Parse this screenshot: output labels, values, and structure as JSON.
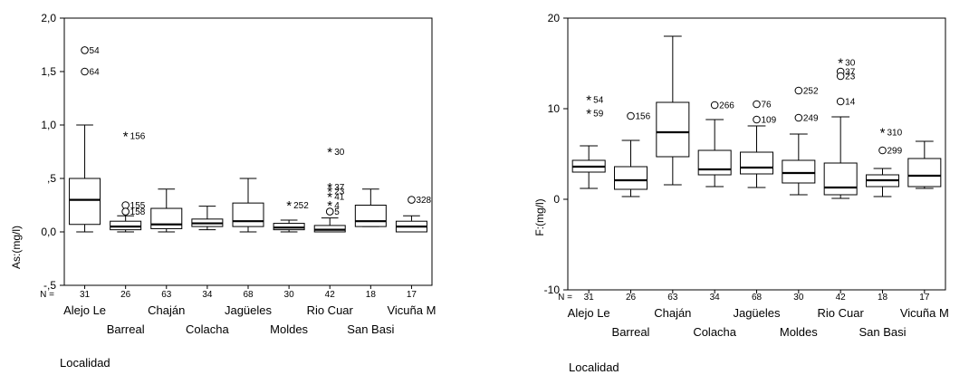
{
  "chart_data": [
    {
      "type": "boxplot",
      "xlabel": "Localidad",
      "ylabel": "As:(mg/l)",
      "ylim": [
        -0.5,
        2.0
      ],
      "yticks": [
        -0.5,
        0.0,
        0.5,
        1.0,
        1.5,
        2.0
      ],
      "yticklabels": [
        "-,5",
        "0,0",
        ",5",
        "1,0",
        "1,5",
        "2,0"
      ],
      "n_label": "N =",
      "grid": false,
      "categories": [
        "Alejo Le",
        "Barreal",
        "Chaján",
        "Colacha",
        "Jagüeles",
        "Moldes",
        "Rio Cuar",
        "San Basi",
        "Vicuña M"
      ],
      "n": [
        "31",
        "26",
        "63",
        "34",
        "68",
        "30",
        "42",
        "18",
        "17"
      ],
      "boxes": [
        {
          "whisker_low": 0.0,
          "q1": 0.07,
          "median": 0.3,
          "q3": 0.5,
          "whisker_high": 1.0
        },
        {
          "whisker_low": 0.0,
          "q1": 0.02,
          "median": 0.05,
          "q3": 0.1,
          "whisker_high": 0.15
        },
        {
          "whisker_low": 0.0,
          "q1": 0.03,
          "median": 0.07,
          "q3": 0.22,
          "whisker_high": 0.4
        },
        {
          "whisker_low": 0.02,
          "q1": 0.05,
          "median": 0.08,
          "q3": 0.12,
          "whisker_high": 0.24
        },
        {
          "whisker_low": 0.0,
          "q1": 0.05,
          "median": 0.1,
          "q3": 0.27,
          "whisker_high": 0.5
        },
        {
          "whisker_low": 0.0,
          "q1": 0.02,
          "median": 0.04,
          "q3": 0.08,
          "whisker_high": 0.11
        },
        {
          "whisker_low": 0.0,
          "q1": 0.0,
          "median": 0.02,
          "q3": 0.06,
          "whisker_high": 0.13
        },
        {
          "whisker_low": 0.05,
          "q1": 0.05,
          "median": 0.1,
          "q3": 0.25,
          "whisker_high": 0.4
        },
        {
          "whisker_low": 0.0,
          "q1": 0.0,
          "median": 0.05,
          "q3": 0.1,
          "whisker_high": 0.15
        }
      ],
      "outliers": [
        {
          "cat": 0,
          "y": 1.7,
          "marker": "circle",
          "label": "54"
        },
        {
          "cat": 0,
          "y": 1.5,
          "marker": "circle",
          "label": "64"
        },
        {
          "cat": 1,
          "y": 0.9,
          "marker": "asterisk",
          "label": "156"
        },
        {
          "cat": 1,
          "y": 0.25,
          "marker": "circle",
          "label": "155"
        },
        {
          "cat": 1,
          "y": 0.19,
          "marker": "circle",
          "label": "158"
        },
        {
          "cat": 5,
          "y": 0.25,
          "marker": "asterisk",
          "label": "252"
        },
        {
          "cat": 6,
          "y": 0.75,
          "marker": "asterisk",
          "label": "30"
        },
        {
          "cat": 6,
          "y": 0.42,
          "marker": "asterisk",
          "label": "37"
        },
        {
          "cat": 6,
          "y": 0.38,
          "marker": "asterisk",
          "label": "23"
        },
        {
          "cat": 6,
          "y": 0.33,
          "marker": "asterisk",
          "label": "41"
        },
        {
          "cat": 6,
          "y": 0.25,
          "marker": "asterisk",
          "label": "4"
        },
        {
          "cat": 6,
          "y": 0.19,
          "marker": "circle",
          "label": "5"
        },
        {
          "cat": 8,
          "y": 0.3,
          "marker": "circle",
          "label": "328"
        }
      ]
    },
    {
      "type": "boxplot",
      "xlabel": "Localidad",
      "ylabel": "F:(mg/l)",
      "ylim": [
        -10,
        20
      ],
      "yticks": [
        -10,
        0,
        10,
        20
      ],
      "yticklabels": [
        "-10",
        "0",
        "10",
        "20"
      ],
      "n_label": "N =",
      "grid": false,
      "categories": [
        "Alejo Le",
        "Barreal",
        "Chaján",
        "Colacha",
        "Jagüeles",
        "Moldes",
        "Rio Cuar",
        "San Basi",
        "Vicuña M"
      ],
      "n": [
        "31",
        "26",
        "63",
        "34",
        "68",
        "30",
        "42",
        "18",
        "17"
      ],
      "boxes": [
        {
          "whisker_low": 1.2,
          "q1": 3.0,
          "median": 3.6,
          "q3": 4.3,
          "whisker_high": 5.9
        },
        {
          "whisker_low": 0.3,
          "q1": 1.1,
          "median": 2.1,
          "q3": 3.6,
          "whisker_high": 6.5
        },
        {
          "whisker_low": 1.6,
          "q1": 4.7,
          "median": 7.4,
          "q3": 10.7,
          "whisker_high": 18.0
        },
        {
          "whisker_low": 1.4,
          "q1": 2.7,
          "median": 3.3,
          "q3": 5.4,
          "whisker_high": 8.8
        },
        {
          "whisker_low": 1.3,
          "q1": 2.8,
          "median": 3.5,
          "q3": 5.2,
          "whisker_high": 8.1
        },
        {
          "whisker_low": 0.5,
          "q1": 1.8,
          "median": 2.9,
          "q3": 4.3,
          "whisker_high": 7.2
        },
        {
          "whisker_low": 0.1,
          "q1": 0.5,
          "median": 1.3,
          "q3": 4.0,
          "whisker_high": 9.1
        },
        {
          "whisker_low": 0.3,
          "q1": 1.4,
          "median": 2.1,
          "q3": 2.7,
          "whisker_high": 3.4
        },
        {
          "whisker_low": 1.2,
          "q1": 1.4,
          "median": 2.6,
          "q3": 4.5,
          "whisker_high": 6.4
        }
      ],
      "outliers": [
        {
          "cat": 0,
          "y": 11.0,
          "marker": "asterisk",
          "label": "54"
        },
        {
          "cat": 0,
          "y": 9.5,
          "marker": "asterisk",
          "label": "59"
        },
        {
          "cat": 1,
          "y": 9.2,
          "marker": "circle",
          "label": "156"
        },
        {
          "cat": 3,
          "y": 10.4,
          "marker": "circle",
          "label": "266"
        },
        {
          "cat": 4,
          "y": 10.5,
          "marker": "circle",
          "label": "76"
        },
        {
          "cat": 4,
          "y": 8.8,
          "marker": "circle",
          "label": "109"
        },
        {
          "cat": 5,
          "y": 12.0,
          "marker": "circle",
          "label": "252"
        },
        {
          "cat": 5,
          "y": 9.0,
          "marker": "circle",
          "label": "249"
        },
        {
          "cat": 6,
          "y": 15.1,
          "marker": "asterisk",
          "label": "30"
        },
        {
          "cat": 6,
          "y": 14.1,
          "marker": "circle",
          "label": "37"
        },
        {
          "cat": 6,
          "y": 13.6,
          "marker": "circle",
          "label": "23"
        },
        {
          "cat": 6,
          "y": 10.8,
          "marker": "circle",
          "label": "14"
        },
        {
          "cat": 7,
          "y": 7.4,
          "marker": "asterisk",
          "label": "310"
        },
        {
          "cat": 7,
          "y": 5.4,
          "marker": "circle",
          "label": "299"
        }
      ]
    }
  ]
}
